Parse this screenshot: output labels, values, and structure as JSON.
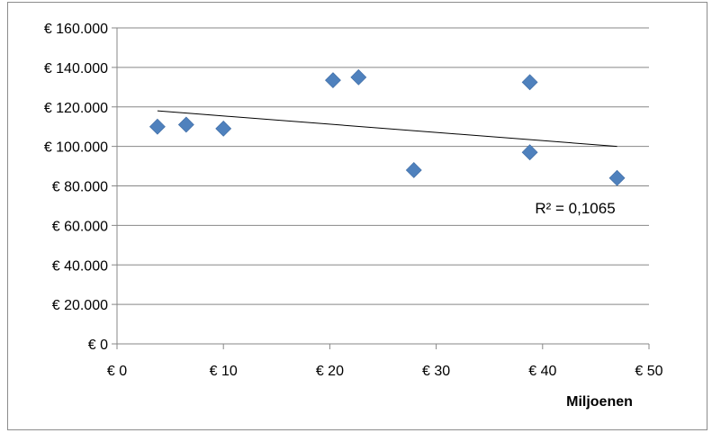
{
  "chart_data": {
    "type": "scatter",
    "xlabel": "Miljoenen",
    "ylabel": "",
    "title": "",
    "xlim": [
      0,
      50
    ],
    "ylim": [
      0,
      160000
    ],
    "x_ticks": [
      0,
      10,
      20,
      30,
      40,
      50
    ],
    "y_ticks": [
      0,
      20000,
      40000,
      60000,
      80000,
      100000,
      120000,
      140000,
      160000
    ],
    "x_tick_labels": [
      "€ 0",
      "€ 10",
      "€ 20",
      "€ 30",
      "€ 40",
      "€ 50"
    ],
    "y_tick_labels": [
      "€ 0",
      "€ 20.000",
      "€ 40.000",
      "€ 60.000",
      "€ 80.000",
      "€ 100.000",
      "€ 120.000",
      "€ 140.000",
      "€ 160.000"
    ],
    "grid": "horizontal",
    "marker_color": "#4f81bd",
    "marker_shape": "diamond",
    "points": [
      {
        "x": 3.8,
        "y": 110000
      },
      {
        "x": 6.5,
        "y": 111000
      },
      {
        "x": 10.0,
        "y": 109000
      },
      {
        "x": 20.3,
        "y": 133500
      },
      {
        "x": 22.7,
        "y": 135000
      },
      {
        "x": 27.9,
        "y": 88000
      },
      {
        "x": 38.8,
        "y": 132500
      },
      {
        "x": 38.8,
        "y": 97000
      },
      {
        "x": 47.0,
        "y": 84000
      }
    ],
    "trendline": {
      "type": "linear",
      "start": {
        "x": 3.8,
        "y": 118000
      },
      "end": {
        "x": 47.0,
        "y": 100000
      },
      "label": "R² = 0,1065"
    }
  }
}
